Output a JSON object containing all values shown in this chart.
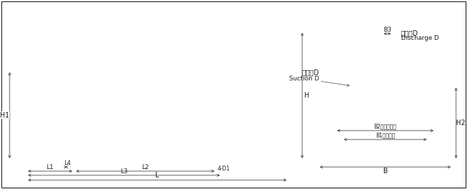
{
  "bg_color": "#ffffff",
  "lc": "#1a1a1a",
  "fig_width": 6.8,
  "fig_height": 2.75,
  "dpi": 100,
  "labels": {
    "H1": "H1",
    "H": "H",
    "H2": "H2",
    "L": "L",
    "L1": "L1",
    "L2": "L2",
    "L3": "L3",
    "L4": "L4",
    "B": "B",
    "B1": "B1（泵端）",
    "B2": "B2（电机端）",
    "B3": "B3",
    "D1": "4-D1",
    "suction_cn": "进油口D",
    "suction_en": "Suction D",
    "discharge_cn": "出油口D",
    "discharge_en": "Discharge D"
  }
}
